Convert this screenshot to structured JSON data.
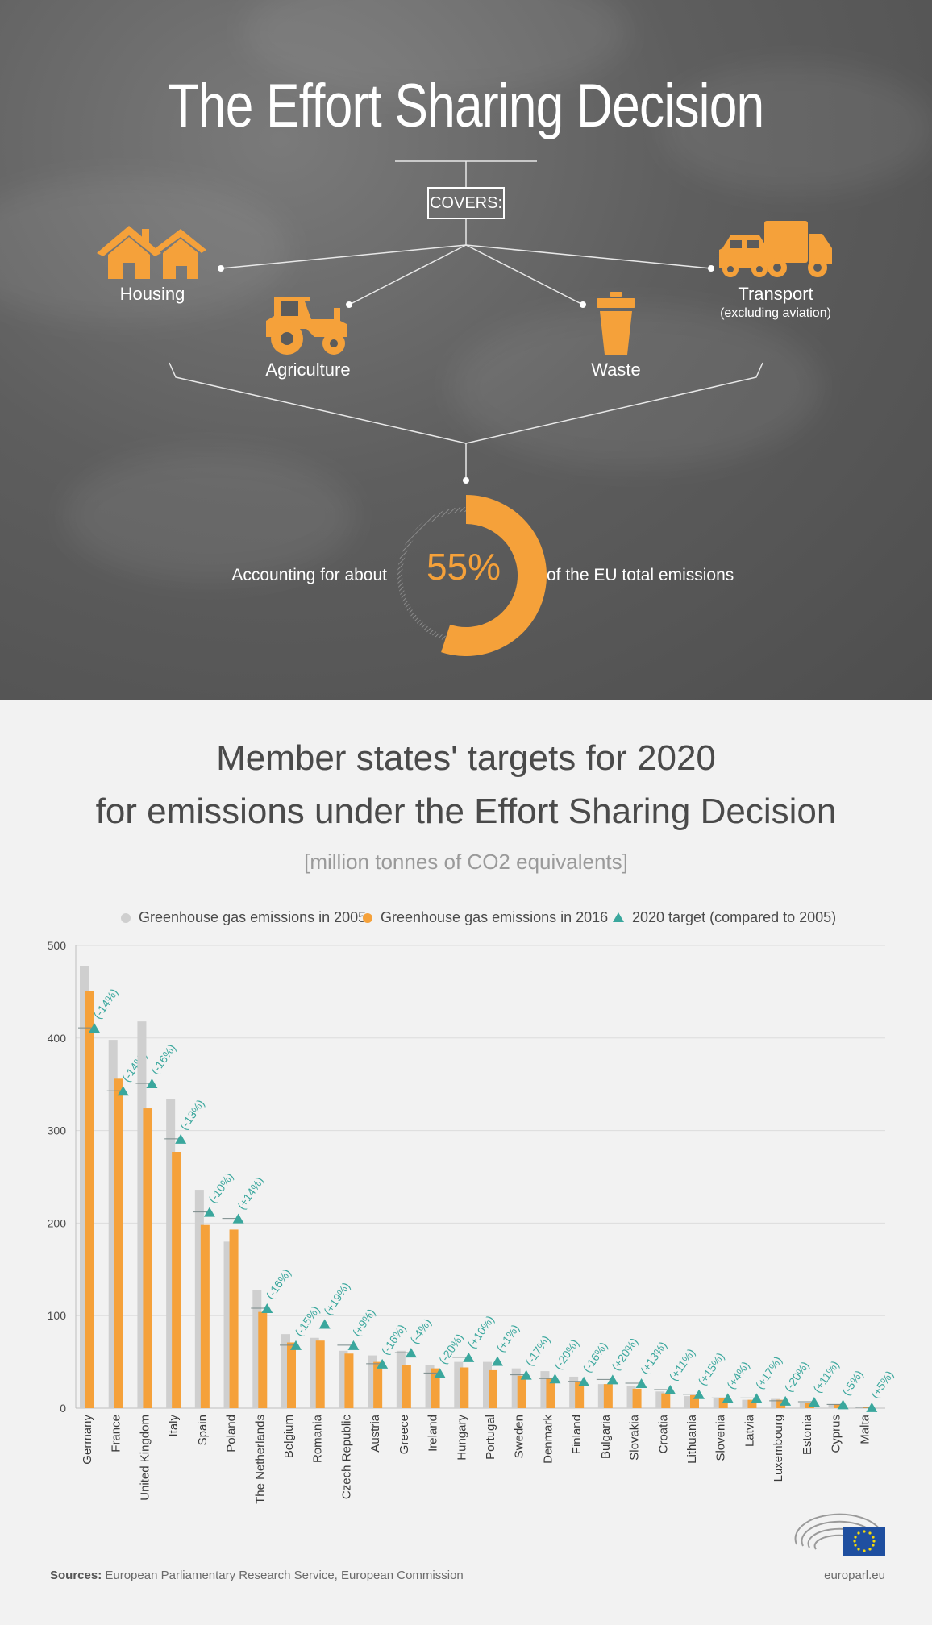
{
  "top": {
    "title": "The Effort Sharing Decision",
    "covers_label": "COVERS:",
    "categories": {
      "housing": "Housing",
      "agriculture": "Agriculture",
      "waste": "Waste",
      "transport": "Transport",
      "transport_note": "(excluding aviation)"
    },
    "share_value": "55%",
    "share_fraction": 0.55,
    "accounting_prefix": "Accounting for about",
    "accounting_suffix": "of the EU total emissions",
    "accent_color": "#f5a13a"
  },
  "chart_title_line1": "Member states' targets for 2020",
  "chart_title_line2": "for emissions under the Effort Sharing Decision",
  "chart_unit": "[million tonnes of CO2 equivalents]",
  "legend": {
    "s2005": "Greenhouse gas emissions in 2005",
    "s2016": "Greenhouse gas emissions in 2016",
    "target": "2020 target (compared to 2005)"
  },
  "colors": {
    "s2005": "#cfcfcf",
    "s2016": "#f5a13a",
    "target": "#3aa79d",
    "grid": "#dcdcdc"
  },
  "chart_data": {
    "type": "bar",
    "ylim": [
      0,
      500
    ],
    "yticks": [
      "0",
      "100",
      "200",
      "300",
      "400",
      "500"
    ],
    "grid": true,
    "legend_position": "top",
    "categories": [
      "Germany",
      "France",
      "United Kingdom",
      "Italy",
      "Spain",
      "Poland",
      "The Netherlands",
      "Belgium",
      "Romania",
      "Czech Republic",
      "Austria",
      "Greece",
      "Ireland",
      "Hungary",
      "Portugal",
      "Sweden",
      "Denmark",
      "Finland",
      "Bulgaria",
      "Slovakia",
      "Croatia",
      "Lithuania",
      "Slovenia",
      "Latvia",
      "Luxembourg",
      "Estonia",
      "Cyprus",
      "Malta"
    ],
    "series": [
      {
        "name": "Greenhouse gas emissions in 2005",
        "values": [
          478,
          398,
          418,
          334,
          236,
          180,
          128,
          80,
          76,
          62,
          57,
          62,
          47,
          50,
          50,
          43,
          40,
          34,
          26,
          24,
          18,
          13,
          11,
          9,
          10,
          6,
          4,
          1
        ]
      },
      {
        "name": "Greenhouse gas emissions in 2016",
        "values": [
          451,
          356,
          324,
          277,
          198,
          193,
          104,
          71,
          73,
          59,
          50,
          47,
          43,
          44,
          41,
          35,
          33,
          29,
          26,
          21,
          16,
          14,
          11,
          9,
          9,
          6,
          4,
          1
        ]
      },
      {
        "name": "2020 target (compared to 2005)",
        "values": [
          411,
          343,
          351,
          291,
          212,
          205,
          108,
          68,
          91,
          68,
          48,
          60,
          38,
          55,
          51,
          36,
          32,
          29,
          31,
          27,
          20,
          15,
          11,
          11,
          8,
          7,
          4,
          1
        ]
      }
    ],
    "target_labels": [
      "(-14%)",
      "(-14%)",
      "(-16%)",
      "(-13%)",
      "(-10%)",
      "(+14%)",
      "(-16%)",
      "(-15%)",
      "(+19%)",
      "(+9%)",
      "(-16%)",
      "(-4%)",
      "(-20%)",
      "(+10%)",
      "(+1%)",
      "(-17%)",
      "(-20%)",
      "(-16%)",
      "(+20%)",
      "(+13%)",
      "(+11%)",
      "(+15%)",
      "(+4%)",
      "(+17%)",
      "(-20%)",
      "(+11%)",
      "(-5%)",
      "(+5%)"
    ]
  },
  "sources_label": "Sources:",
  "sources_text": "European Parliamentary Research Service, European Commission",
  "site": "europarl.eu"
}
